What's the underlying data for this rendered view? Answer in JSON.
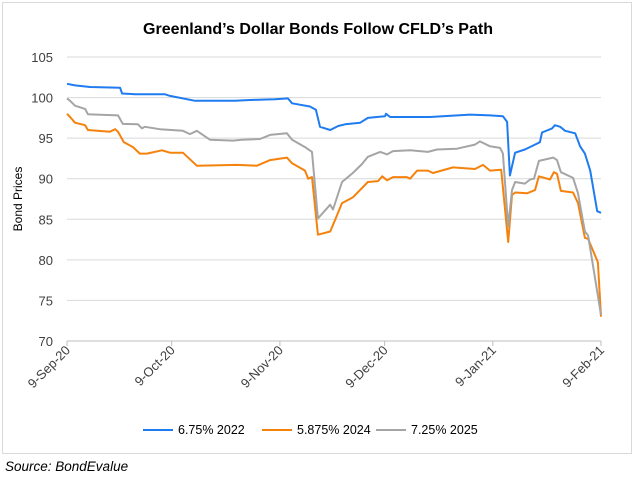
{
  "chart_data": {
    "type": "line",
    "title": "Greenland’s Dollar Bonds Follow CFLD’s Path",
    "xlabel": "",
    "ylabel": "Bond Prices",
    "x_units": "days since 9-Sep-20",
    "xlim": [
      0,
      153
    ],
    "ylim": [
      70,
      105
    ],
    "yticks": [
      70,
      75,
      80,
      85,
      90,
      95,
      100,
      105
    ],
    "xticks": [
      {
        "day": 0,
        "label": "9-Sep-20"
      },
      {
        "day": 30,
        "label": "9-Oct-20"
      },
      {
        "day": 61,
        "label": "9-Nov-20"
      },
      {
        "day": 91,
        "label": "9-Dec-20"
      },
      {
        "day": 122,
        "label": "9-Jan-21"
      },
      {
        "day": 153,
        "label": "9-Feb-21"
      }
    ],
    "grid": "horizontal",
    "legend": "bottom",
    "series": [
      {
        "name": "6.75% 2022",
        "color": "#1F7BF0",
        "x": [
          0,
          2.3,
          6.6,
          15.2,
          15.8,
          19.5,
          28.1,
          29.5,
          36.7,
          48.1,
          52.4,
          59.6,
          63.3,
          64.5,
          69.6,
          71.3,
          72.5,
          75.4,
          77.7,
          79.7,
          84,
          86.2,
          91.1,
          91.4,
          92.6,
          104,
          115.5,
          121.2,
          124.9,
          126.1,
          126.9,
          128.4,
          131.2,
          134.1,
          135.5,
          136.1,
          139,
          139.8,
          141.3,
          142.7,
          145.6,
          147,
          148.4,
          149.9,
          151.9,
          153
        ],
        "y": [
          101.7,
          101.5,
          101.3,
          101.2,
          100.5,
          100.4,
          100.4,
          100.2,
          99.6,
          99.6,
          99.7,
          99.8,
          99.9,
          99.3,
          98.9,
          98.5,
          96.4,
          96.0,
          96.5,
          96.7,
          96.9,
          97.5,
          97.7,
          98.0,
          97.6,
          97.6,
          97.9,
          97.8,
          97.7,
          97.0,
          90.4,
          93.2,
          93.6,
          94.2,
          94.5,
          95.7,
          96.2,
          96.6,
          96.4,
          95.9,
          95.6,
          94.0,
          93.1,
          91.0,
          86.0,
          85.8
        ]
      },
      {
        "name": "5.875% 2024",
        "color": "#F5820D",
        "x": [
          0,
          0.9,
          2.3,
          5.2,
          6.0,
          12.3,
          13.8,
          14.6,
          16.3,
          18.9,
          20.9,
          22.9,
          27.2,
          29.5,
          33.2,
          37.2,
          48.7,
          54.4,
          58.2,
          63.0,
          64.5,
          68.2,
          69.1,
          70.2,
          71.9,
          75.4,
          76.8,
          78.8,
          81.9,
          86.2,
          89.1,
          90.3,
          91.7,
          93.4,
          97.4,
          98.3,
          100.3,
          103.4,
          104.9,
          110.6,
          116.9,
          119.2,
          121.2,
          124.4,
          126.4,
          127.5,
          128.4,
          131.8,
          134.1,
          135.2,
          138.4,
          139.5,
          140.4,
          141.5,
          145.0,
          146.4,
          148.4,
          149.3,
          152.1,
          153
        ],
        "y": [
          98.0,
          97.6,
          96.9,
          96.6,
          96.0,
          95.8,
          96.1,
          95.8,
          94.5,
          93.9,
          93.1,
          93.1,
          93.5,
          93.2,
          93.2,
          91.6,
          91.7,
          91.6,
          92.3,
          92.6,
          91.9,
          91.0,
          90.0,
          90.2,
          83.1,
          83.5,
          84.9,
          87.0,
          87.7,
          89.6,
          89.7,
          90.3,
          89.8,
          90.2,
          90.2,
          90.0,
          91.0,
          91.0,
          90.7,
          91.4,
          91.2,
          91.7,
          91.0,
          91.1,
          82.2,
          88.0,
          88.3,
          88.2,
          88.6,
          90.3,
          89.9,
          90.8,
          90.6,
          88.5,
          88.3,
          87.0,
          82.7,
          82.6,
          79.7,
          73.0
        ]
      },
      {
        "name": "7.25% 2025",
        "color": "#A5A5A5",
        "x": [
          0,
          0.9,
          2.3,
          5.2,
          6.0,
          8.6,
          14.6,
          16.0,
          20.3,
          21.5,
          22.3,
          26.6,
          33.2,
          35.2,
          37.2,
          41.0,
          47.6,
          50.1,
          55.3,
          58.2,
          63.0,
          64.5,
          68.2,
          70.2,
          71.9,
          75.4,
          76.2,
          78.8,
          81.9,
          84.5,
          86.2,
          89.7,
          91.7,
          93.4,
          98.3,
          103.4,
          106.0,
          111.7,
          116.9,
          118.3,
          121.2,
          124.1,
          124.9,
          126.4,
          127.5,
          128.4,
          131.2,
          132.7,
          133.8,
          135.2,
          139.3,
          140.4,
          141.5,
          145.0,
          146.4,
          148.4,
          149.3,
          153
        ],
        "y": [
          99.9,
          99.6,
          99.0,
          98.6,
          97.95,
          97.9,
          97.8,
          96.75,
          96.7,
          96.2,
          96.4,
          96.1,
          95.9,
          95.5,
          95.9,
          94.8,
          94.7,
          94.8,
          94.9,
          95.4,
          95.6,
          94.8,
          93.9,
          93.3,
          85.1,
          86.8,
          86.2,
          89.6,
          90.7,
          91.8,
          92.7,
          93.3,
          93.0,
          93.4,
          93.5,
          93.3,
          93.6,
          93.7,
          94.2,
          94.6,
          94.0,
          93.8,
          93.1,
          84.1,
          88.6,
          89.6,
          89.4,
          89.9,
          90.0,
          92.2,
          92.6,
          92.3,
          90.8,
          90.1,
          88.2,
          83.5,
          83.0,
          73.2
        ]
      }
    ]
  },
  "source": "Source: BondEvalue"
}
